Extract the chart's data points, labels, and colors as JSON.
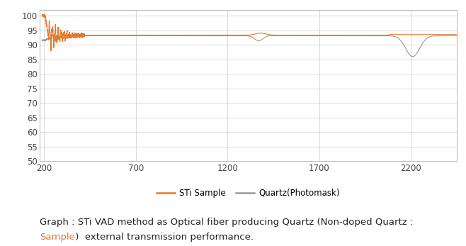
{
  "xlim": [
    175,
    2450
  ],
  "ylim": [
    50,
    102
  ],
  "yticks": [
    50,
    55,
    60,
    65,
    70,
    75,
    80,
    85,
    90,
    95,
    100
  ],
  "xticks": [
    200,
    700,
    1200,
    1700,
    2200
  ],
  "sti_color": "#E87722",
  "quartz_color": "#999999",
  "grid_color": "#cccccc",
  "background_color": "#ffffff",
  "legend_sti": "STi Sample",
  "legend_quartz": "Quartz(Photomask)",
  "caption_line1": "Graph : STi VAD method as Optical fiber producing Quartz (Non-doped Quartz : ",
  "caption_orange": "Sample",
  "caption_line2": " )  external transmission performance.",
  "caption_fontsize": 9.5,
  "tick_fontsize": 8.5
}
